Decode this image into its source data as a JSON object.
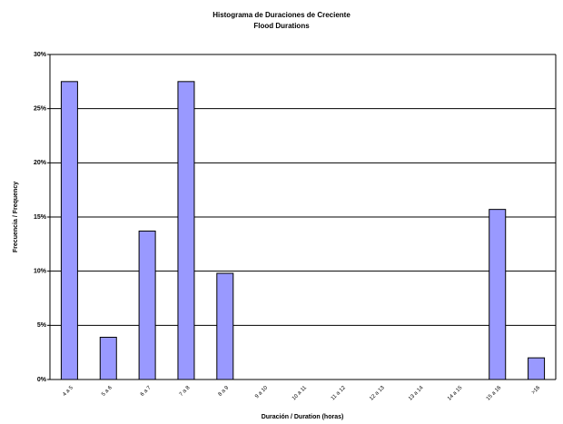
{
  "chart_data": {
    "type": "bar",
    "title": "Histograma de Duraciones de Creciente",
    "subtitle": "Flood Durations",
    "x_label": "Duración / Duration (horas)",
    "y_label": "Frecuencia / Frequency",
    "categories": [
      "4 a 5",
      "5 a 6",
      "6 a 7",
      "7 a 8",
      "8 a 9",
      "9 a 10",
      "10 a 11",
      "11 a 12",
      "12 a 13",
      "13 a 14",
      "14 a 15",
      "15 a 16",
      ">16"
    ],
    "values": [
      27.5,
      3.9,
      13.7,
      27.5,
      9.8,
      0,
      0,
      0,
      0,
      0,
      0,
      15.7,
      2.0
    ],
    "color": "#9999ff",
    "ylim": [
      0,
      30
    ],
    "yticks": [
      {
        "value": 0,
        "label": "0%"
      },
      {
        "value": 5,
        "label": "5%"
      },
      {
        "value": 10,
        "label": "10%"
      },
      {
        "value": 15,
        "label": "15%"
      },
      {
        "value": 20,
        "label": "20%"
      },
      {
        "value": 25,
        "label": "25%"
      },
      {
        "value": 30,
        "label": "30%"
      }
    ],
    "grid": true
  }
}
